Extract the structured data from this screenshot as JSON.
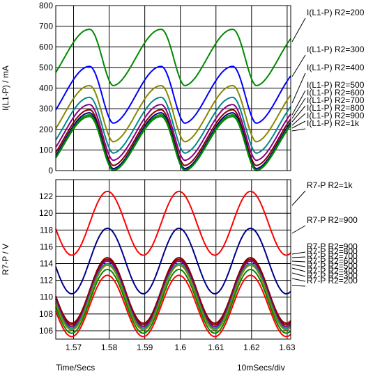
{
  "chart_data": [
    {
      "type": "line",
      "ylabel": "I(L1-P) / mA",
      "xlabel": "Time/Secs",
      "ylim": [
        0,
        800
      ],
      "xlim": [
        1.565,
        1.631
      ],
      "y_ticks": [
        "0",
        "100",
        "200",
        "300",
        "400",
        "500",
        "600",
        "700",
        "800"
      ],
      "grid": true,
      "series": [
        {
          "name": "I(L1-P) R2=200",
          "color": "#008800",
          "peak": 685,
          "trough": 412
        },
        {
          "name": "I(L1-P) R2=300",
          "color": "#0000ff",
          "peak": 505,
          "trough": 230
        },
        {
          "name": "I(L1-P) R2=400",
          "color": "#888800",
          "peak": 412,
          "trough": 140
        },
        {
          "name": "I(L1-P) R2=500",
          "color": "#008888",
          "peak": 355,
          "trough": 85
        },
        {
          "name": "I(L1-P) R2=600",
          "color": "#880088",
          "peak": 320,
          "trough": 50
        },
        {
          "name": "I(L1-P) R2=700",
          "color": "#880000",
          "peak": 295,
          "trough": 25
        },
        {
          "name": "I(L1-P) R2=800",
          "color": "#000088",
          "peak": 280,
          "trough": 10
        },
        {
          "name": "I(L1-P) R2=900",
          "color": "#008800",
          "peak": 270,
          "trough": 3
        },
        {
          "name": "I(L1-P) R2=1k",
          "color": "#008800",
          "peak": 262,
          "trough": 0
        }
      ],
      "annotations": [
        "I(L1-P) R2=200",
        "I(L1-P) R2=300",
        "I(L1-P) R2=400",
        "I(L1-P) R2=500",
        "I(L1-P) R2=600",
        "I(L1-P) R2=700",
        "I(L1-P) R2=800",
        "I(L1-P) R2=900",
        "I(L1-P) R2=1k"
      ]
    },
    {
      "type": "line",
      "ylabel": "R7-P / V",
      "xlabel": "Time/Secs",
      "ylim": [
        105,
        124
      ],
      "xlim": [
        1.565,
        1.631
      ],
      "x_ticks": [
        "1.57",
        "1.58",
        "1.59",
        "1.6",
        "1.61",
        "1.62",
        "1.63"
      ],
      "x_tick_values": [
        1.57,
        1.58,
        1.59,
        1.6,
        1.61,
        1.62,
        1.63
      ],
      "y_ticks": [
        "106",
        "108",
        "110",
        "112",
        "114",
        "116",
        "118",
        "120",
        "122"
      ],
      "grid": true,
      "series": [
        {
          "name": "R7-P R2=1k",
          "color": "#ff0000",
          "peak": 122.6,
          "trough": 115.0
        },
        {
          "name": "R7-P R2=900",
          "color": "#000088",
          "peak": 118.2,
          "trough": 110.4
        },
        {
          "name": "R7-P R2=800",
          "color": "#880000",
          "peak": 114.7,
          "trough": 106.9
        },
        {
          "name": "R7-P R2=700",
          "color": "#880000",
          "peak": 114.5,
          "trough": 106.7
        },
        {
          "name": "R7-P R2=600",
          "color": "#880088",
          "peak": 114.3,
          "trough": 106.5
        },
        {
          "name": "R7-P R2=500",
          "color": "#008888",
          "peak": 114.0,
          "trough": 106.3
        },
        {
          "name": "R7-P R2=400",
          "color": "#888800",
          "peak": 113.8,
          "trough": 106.1
        },
        {
          "name": "R7-P R2=300",
          "color": "#008800",
          "peak": 113.3,
          "trough": 105.7
        },
        {
          "name": "R7-P R2=200",
          "color": "#ff0000",
          "peak": 112.6,
          "trough": 105.3
        }
      ],
      "annotations": [
        "R7-P R2=1k",
        "R7-P R2=900",
        "R7-P R2=900",
        "R7-P R2=800",
        "R7-P R2=700",
        "R7-P R2=600",
        "R7-P R2=500",
        "R7-P R2=400",
        "R7-P R2=300",
        "R7-P R2=200"
      ]
    }
  ],
  "footer": {
    "left": "Time/Secs",
    "right": "10mSecs/div"
  }
}
